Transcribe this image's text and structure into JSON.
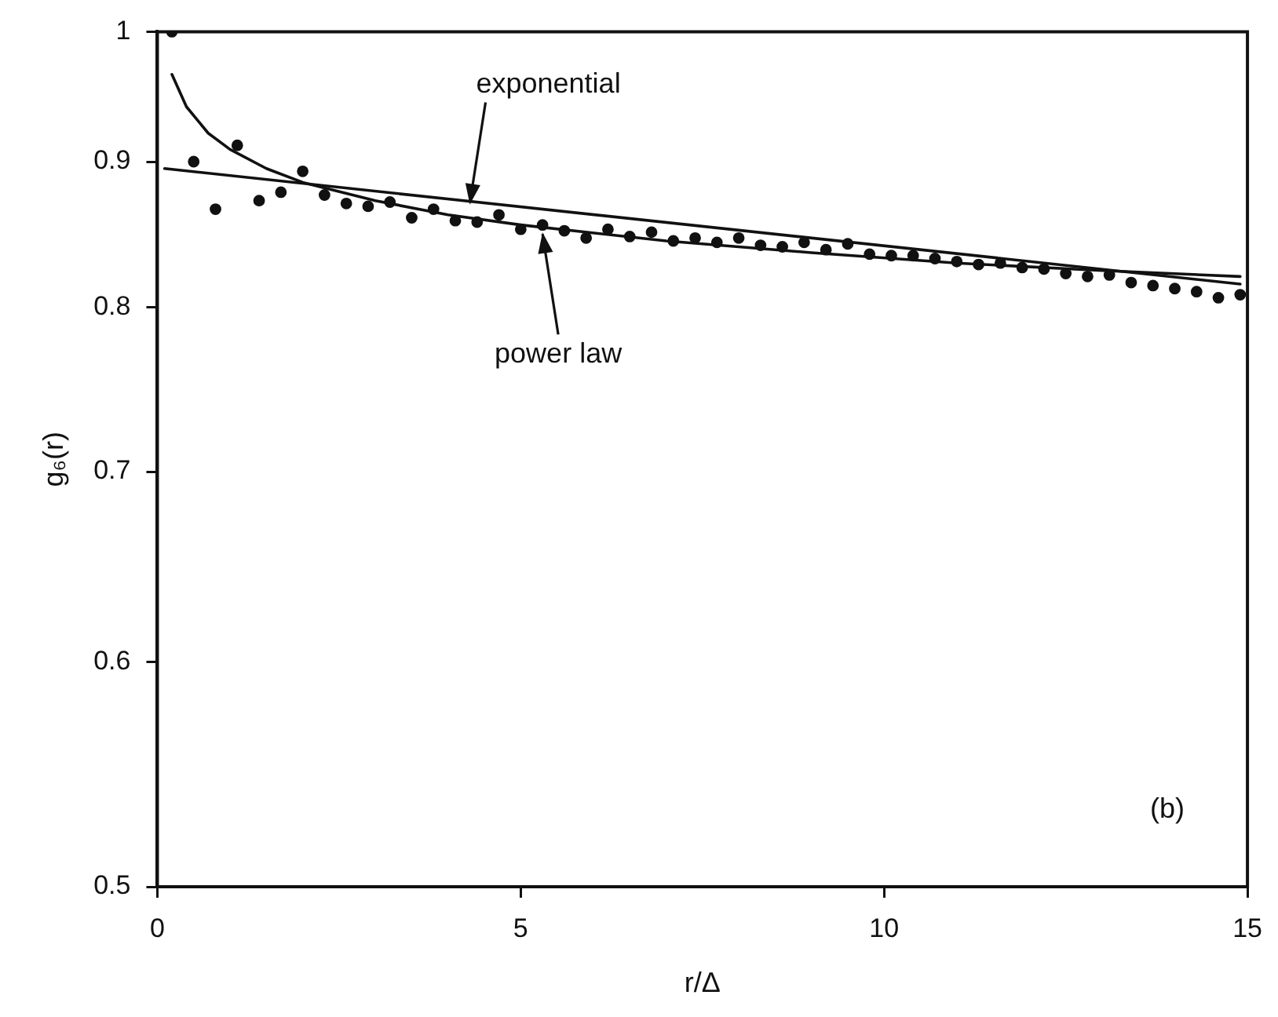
{
  "chart_data": {
    "type": "scatter",
    "xlabel": "r/Δ",
    "ylabel": "g₆(r)",
    "log": "y",
    "grid": false,
    "legend": false,
    "xlim": [
      0,
      15
    ],
    "xticks": [
      0,
      5,
      10,
      15
    ],
    "ylim": [
      0.5,
      1
    ],
    "yticks": [
      0.5,
      0.6,
      0.7,
      0.8,
      0.9,
      1
    ],
    "series": [
      {
        "type": "scatter",
        "color": "#111111",
        "marker": "circle",
        "x": [
          0.2,
          0.5,
          0.8,
          1.1,
          1.4,
          1.7,
          2.0,
          2.3,
          2.6,
          2.9,
          3.2,
          3.5,
          3.8,
          4.1,
          4.4,
          4.7,
          5.0,
          5.3,
          5.6,
          5.9,
          6.2,
          6.5,
          6.8,
          7.1,
          7.4,
          7.7,
          8.0,
          8.3,
          8.6,
          8.9,
          9.2,
          9.5,
          9.8,
          10.1,
          10.4,
          10.7,
          11.0,
          11.3,
          11.6,
          11.9,
          12.2,
          12.5,
          12.8,
          13.1,
          13.4,
          13.7,
          14.0,
          14.3,
          14.6,
          14.9
        ],
        "values": [
          1.0,
          0.9,
          0.866,
          0.912,
          0.872,
          0.878,
          0.893,
          0.876,
          0.87,
          0.868,
          0.871,
          0.86,
          0.866,
          0.858,
          0.857,
          0.862,
          0.852,
          0.855,
          0.851,
          0.846,
          0.852,
          0.847,
          0.85,
          0.844,
          0.846,
          0.843,
          0.846,
          0.841,
          0.84,
          0.843,
          0.838,
          0.842,
          0.835,
          0.834,
          0.834,
          0.832,
          0.83,
          0.828,
          0.829,
          0.826,
          0.825,
          0.822,
          0.82,
          0.821,
          0.816,
          0.814,
          0.812,
          0.81,
          0.806,
          0.808
        ]
      },
      {
        "type": "line",
        "color": "#111111",
        "marker": "none",
        "x": [
          0.1,
          14.9
        ],
        "values": [
          0.895,
          0.815
        ]
      },
      {
        "type": "line",
        "color": "#111111",
        "marker": "none",
        "x": [
          0.2,
          0.4,
          0.7,
          1,
          1.5,
          2,
          3,
          4,
          5,
          7,
          9,
          11,
          13,
          14.9
        ],
        "values": [
          0.966,
          0.941,
          0.921,
          0.909,
          0.895,
          0.885,
          0.872,
          0.862,
          0.855,
          0.844,
          0.836,
          0.829,
          0.824,
          0.82
        ]
      }
    ],
    "annotations": [
      {
        "text": "exponential",
        "x": 4.3,
        "y": 0.866
      },
      {
        "text": "power law",
        "x": 5.3,
        "y": 0.853
      },
      "(b)"
    ]
  }
}
